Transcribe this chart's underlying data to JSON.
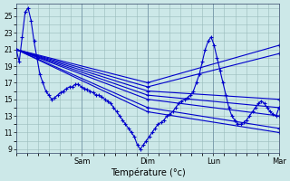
{
  "xlabel": "Température (°c)",
  "bg_color": "#cce8e8",
  "line_color": "#0000cc",
  "grid_color": "#99bbbb",
  "ylim": [
    8.5,
    26.5
  ],
  "yticks": [
    9,
    11,
    13,
    15,
    17,
    19,
    21,
    23,
    25
  ],
  "day_labels": [
    "Sam",
    "Dim",
    "Lun",
    "Mar"
  ],
  "day_positions": [
    0.25,
    0.5,
    0.75,
    1.0
  ],
  "xlim": [
    0,
    1
  ],
  "n_hours": 90,
  "detailed_line": [
    21.0,
    19.5,
    22.5,
    25.5,
    26.0,
    24.5,
    22.0,
    20.0,
    18.0,
    17.0,
    16.0,
    15.5,
    15.0,
    15.2,
    15.5,
    15.8,
    16.0,
    16.3,
    16.5,
    16.5,
    16.8,
    16.8,
    16.5,
    16.3,
    16.2,
    16.0,
    15.8,
    15.5,
    15.5,
    15.3,
    15.0,
    14.8,
    14.5,
    14.0,
    13.5,
    13.0,
    12.5,
    12.0,
    11.5,
    11.0,
    10.5,
    9.5,
    9.0,
    9.5,
    10.0,
    10.5,
    11.0,
    11.5,
    12.0,
    12.2,
    12.5,
    13.0,
    13.2,
    13.5,
    14.0,
    14.5,
    14.8,
    15.0,
    15.2,
    15.5,
    16.0,
    17.0,
    18.0,
    19.5,
    21.0,
    22.0,
    22.5,
    21.5,
    20.0,
    18.5,
    17.0,
    15.5,
    14.0,
    13.0,
    12.5,
    12.0,
    12.0,
    12.2,
    12.5,
    13.0,
    13.5,
    14.0,
    14.5,
    14.8,
    14.5,
    14.0,
    13.5,
    13.2,
    13.0,
    14.0
  ],
  "straight_lines": [
    {
      "x": [
        0,
        0.5,
        1.0
      ],
      "y": [
        21.0,
        13.5,
        11.0
      ]
    },
    {
      "x": [
        0,
        0.5,
        1.0
      ],
      "y": [
        21.0,
        14.0,
        11.5
      ]
    },
    {
      "x": [
        0,
        0.5,
        1.0
      ],
      "y": [
        21.0,
        15.0,
        13.0
      ]
    },
    {
      "x": [
        0,
        0.5,
        1.0
      ],
      "y": [
        21.0,
        15.5,
        14.0
      ]
    },
    {
      "x": [
        0,
        0.5,
        1.0
      ],
      "y": [
        21.0,
        16.0,
        15.0
      ]
    },
    {
      "x": [
        0,
        0.5,
        1.0
      ],
      "y": [
        21.0,
        16.5,
        20.5
      ]
    },
    {
      "x": [
        0,
        0.5,
        1.0
      ],
      "y": [
        21.0,
        17.0,
        21.5
      ]
    }
  ]
}
